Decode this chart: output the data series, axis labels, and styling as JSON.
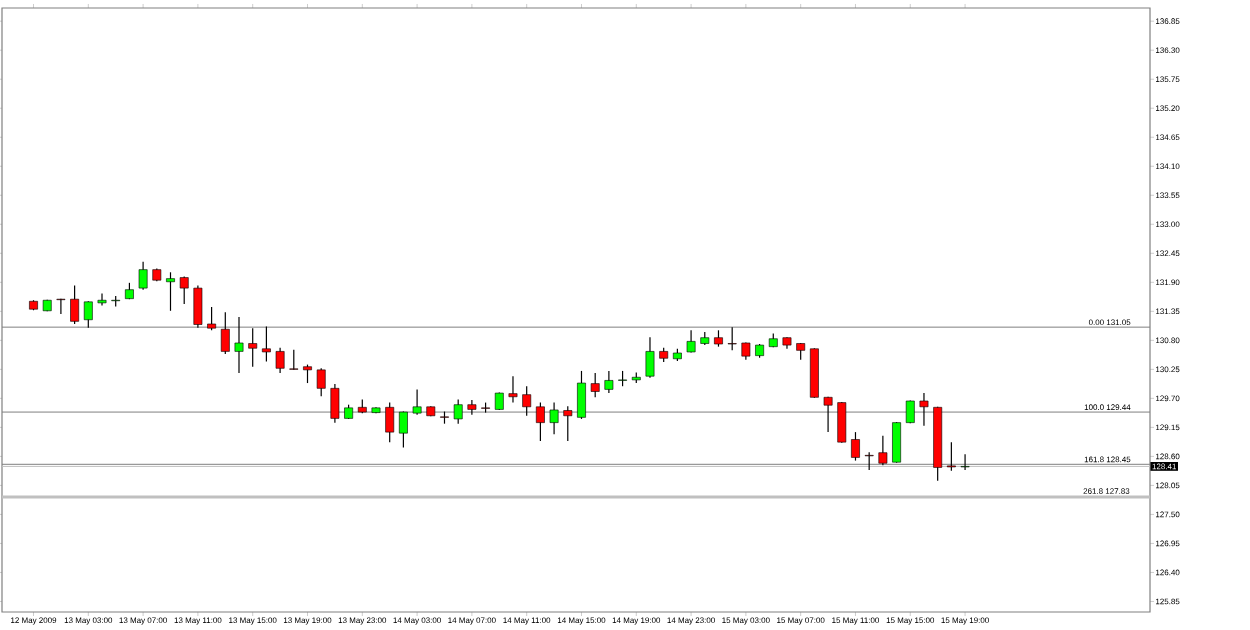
{
  "chart_data": {
    "type": "candlestick",
    "categories": [
      "12 May 2009",
      null,
      null,
      null,
      "13 May 03:00",
      null,
      null,
      null,
      "13 May 07:00",
      null,
      null,
      null,
      "13 May 11:00",
      null,
      null,
      null,
      "13 May 15:00",
      null,
      null,
      null,
      "13 May 19:00",
      null,
      null,
      null,
      "13 May 23:00",
      null,
      null,
      null,
      "14 May 03:00",
      null,
      null,
      null,
      "14 May 07:00",
      null,
      null,
      null,
      "14 May 11:00",
      null,
      null,
      null,
      "14 May 15:00",
      null,
      null,
      null,
      "14 May 19:00",
      null,
      null,
      null,
      "14 May 23:00",
      null,
      null,
      null,
      "15 May 03:00",
      null,
      null,
      null,
      "15 May 07:00",
      null,
      null,
      null,
      "15 May 11:00",
      null,
      null,
      null,
      "15 May 15:00",
      null,
      null,
      null,
      "15 May 19:00",
      null,
      null,
      null,
      null,
      null,
      null,
      null,
      null,
      null,
      null,
      null,
      null,
      null
    ],
    "ohlc": [
      [
        131.54,
        131.56,
        131.37,
        131.39
      ],
      [
        131.36,
        131.57,
        131.35,
        131.56
      ],
      [
        131.58,
        131.59,
        131.3,
        131.57
      ],
      [
        131.58,
        131.84,
        131.11,
        131.16
      ],
      [
        131.19,
        131.54,
        131.04,
        131.53
      ],
      [
        131.51,
        131.69,
        131.46,
        131.56
      ],
      [
        131.55,
        131.64,
        131.44,
        131.56
      ],
      [
        131.59,
        131.89,
        131.58,
        131.76
      ],
      [
        131.79,
        132.29,
        131.76,
        132.14
      ],
      [
        132.14,
        132.16,
        131.92,
        131.94
      ],
      [
        131.91,
        132.09,
        131.36,
        131.97
      ],
      [
        131.99,
        132.01,
        131.49,
        131.79
      ],
      [
        131.79,
        131.84,
        131.04,
        131.1
      ],
      [
        131.11,
        131.43,
        130.99,
        131.03
      ],
      [
        131.01,
        131.33,
        130.54,
        130.59
      ],
      [
        130.59,
        131.24,
        130.18,
        130.75
      ],
      [
        130.74,
        131.03,
        130.3,
        130.65
      ],
      [
        130.64,
        131.06,
        130.4,
        130.58
      ],
      [
        130.59,
        130.66,
        130.18,
        130.27
      ],
      [
        130.26,
        130.62,
        130.24,
        130.25
      ],
      [
        130.3,
        130.34,
        129.99,
        130.24
      ],
      [
        130.24,
        130.27,
        129.74,
        129.89
      ],
      [
        129.89,
        129.97,
        129.24,
        129.32
      ],
      [
        129.32,
        129.58,
        129.31,
        129.52
      ],
      [
        129.53,
        129.68,
        129.42,
        129.44
      ],
      [
        129.43,
        129.53,
        129.42,
        129.52
      ],
      [
        129.53,
        129.62,
        128.87,
        129.06
      ],
      [
        129.04,
        129.45,
        128.77,
        129.44
      ],
      [
        129.42,
        129.87,
        129.39,
        129.54
      ],
      [
        129.54,
        129.55,
        129.36,
        129.37
      ],
      [
        129.35,
        129.45,
        129.22,
        129.34
      ],
      [
        129.31,
        129.68,
        129.22,
        129.58
      ],
      [
        129.58,
        129.67,
        129.39,
        129.49
      ],
      [
        129.52,
        129.62,
        129.43,
        129.51
      ],
      [
        129.49,
        129.81,
        129.48,
        129.8
      ],
      [
        129.79,
        130.12,
        129.62,
        129.73
      ],
      [
        129.77,
        129.93,
        129.37,
        129.54
      ],
      [
        129.54,
        129.62,
        128.89,
        129.24
      ],
      [
        129.24,
        129.62,
        129.02,
        129.48
      ],
      [
        129.47,
        129.55,
        128.89,
        129.37
      ],
      [
        129.34,
        130.22,
        129.31,
        129.99
      ],
      [
        129.98,
        130.18,
        129.72,
        129.83
      ],
      [
        129.87,
        130.22,
        129.8,
        130.04
      ],
      [
        130.04,
        130.22,
        129.93,
        130.05
      ],
      [
        130.05,
        130.19,
        129.99,
        130.1
      ],
      [
        130.12,
        130.86,
        130.09,
        130.59
      ],
      [
        130.59,
        130.66,
        130.39,
        130.46
      ],
      [
        130.45,
        130.64,
        130.41,
        130.56
      ],
      [
        130.58,
        130.99,
        130.57,
        130.78
      ],
      [
        130.74,
        130.96,
        130.71,
        130.85
      ],
      [
        130.85,
        130.99,
        130.68,
        130.73
      ],
      [
        130.74,
        131.05,
        130.61,
        130.73
      ],
      [
        130.75,
        130.76,
        130.43,
        130.5
      ],
      [
        130.51,
        130.73,
        130.47,
        130.71
      ],
      [
        130.68,
        130.93,
        130.67,
        130.83
      ],
      [
        130.85,
        130.86,
        130.64,
        130.71
      ],
      [
        130.74,
        130.75,
        130.43,
        130.61
      ],
      [
        130.64,
        130.65,
        129.71,
        129.72
      ],
      [
        129.72,
        129.73,
        129.06,
        129.57
      ],
      [
        129.62,
        129.63,
        128.86,
        128.87
      ],
      [
        128.92,
        129.06,
        128.52,
        128.58
      ],
      [
        128.62,
        128.68,
        128.34,
        128.61
      ],
      [
        128.67,
        128.99,
        128.43,
        128.47
      ],
      [
        128.49,
        129.25,
        128.48,
        129.24
      ],
      [
        129.24,
        129.66,
        129.23,
        129.65
      ],
      [
        129.65,
        129.8,
        129.18,
        129.54
      ],
      [
        129.53,
        129.54,
        128.14,
        128.39
      ],
      [
        128.42,
        128.87,
        128.33,
        128.4
      ],
      [
        128.4,
        128.64,
        128.34,
        128.41
      ],
      null,
      null,
      null,
      null,
      null,
      null,
      null,
      null,
      null,
      null,
      null,
      null,
      null
    ],
    "colors": [
      "#ff0000",
      "#00ff00",
      "#ff0000",
      "#ff0000",
      "#00ff00",
      "#00ff00",
      "#00ff00",
      "#00ff00",
      "#00ff00",
      "#ff0000",
      "#00ff00",
      "#ff0000",
      "#ff0000",
      "#ff0000",
      "#ff0000",
      "#00ff00",
      "#ff0000",
      "#ff0000",
      "#ff0000",
      "#ff0000",
      "#ff0000",
      "#ff0000",
      "#ff0000",
      "#00ff00",
      "#ff0000",
      "#00ff00",
      "#ff0000",
      "#00ff00",
      "#00ff00",
      "#ff0000",
      "#ff0000",
      "#00ff00",
      "#ff0000",
      "#ff0000",
      "#00ff00",
      "#ff0000",
      "#ff0000",
      "#ff0000",
      "#00ff00",
      "#ff0000",
      "#00ff00",
      "#ff0000",
      "#00ff00",
      "#00ff00",
      "#00ff00",
      "#00ff00",
      "#ff0000",
      "#00ff00",
      "#00ff00",
      "#00ff00",
      "#ff0000",
      "#ff0000",
      "#ff0000",
      "#00ff00",
      "#00ff00",
      "#ff0000",
      "#ff0000",
      "#ff0000",
      "#ff0000",
      "#ff0000",
      "#ff0000",
      "#ff0000",
      "#ff0000",
      "#00ff00",
      "#00ff00",
      "#ff0000",
      "#ff0000",
      "#ff0000",
      "#00ff00",
      null,
      null,
      null,
      null,
      null,
      null,
      null,
      null,
      null,
      null,
      null,
      null,
      null
    ],
    "ylim": [
      125.65,
      137.1
    ],
    "yticks": [
      136.85,
      {
        "value": 136.3,
        "label": "136.30"
      },
      135.75,
      {
        "value": 135.2,
        "label": "135.20"
      },
      134.65,
      {
        "value": 134.1,
        "label": "134.10"
      },
      133.55,
      {
        "value": 133.0,
        "label": "133.00"
      },
      132.45,
      {
        "value": 131.9,
        "label": "131.90"
      },
      131.35,
      {
        "value": 130.8,
        "label": "130.80"
      },
      130.25,
      {
        "value": 129.7,
        "label": "129.70"
      },
      129.15,
      {
        "value": 128.6,
        "label": "128.60"
      },
      128.05,
      {
        "value": 127.5,
        "label": "127.50"
      },
      126.95,
      {
        "value": 126.4,
        "label": "126.40"
      },
      125.85
    ],
    "grid": false,
    "ref_lines": [
      {
        "axis": "y",
        "value": 131.05,
        "label": "0.00  131.05",
        "color": "#808080"
      },
      {
        "axis": "y",
        "value": 129.44,
        "label": "100.0  129.44",
        "color": "#808080"
      },
      {
        "axis": "y",
        "value": 128.45,
        "label": "161.8  128.45",
        "color": "#808080"
      },
      {
        "axis": "y",
        "value": 127.83,
        "label": "261.8  127.83",
        "color": "#c0c0c0"
      },
      {
        "axis": "y",
        "value": 128.41,
        "color": "#c0c0c0"
      }
    ],
    "annotations": [
      {
        "text": "128.41",
        "y": 128.41
      }
    ]
  }
}
